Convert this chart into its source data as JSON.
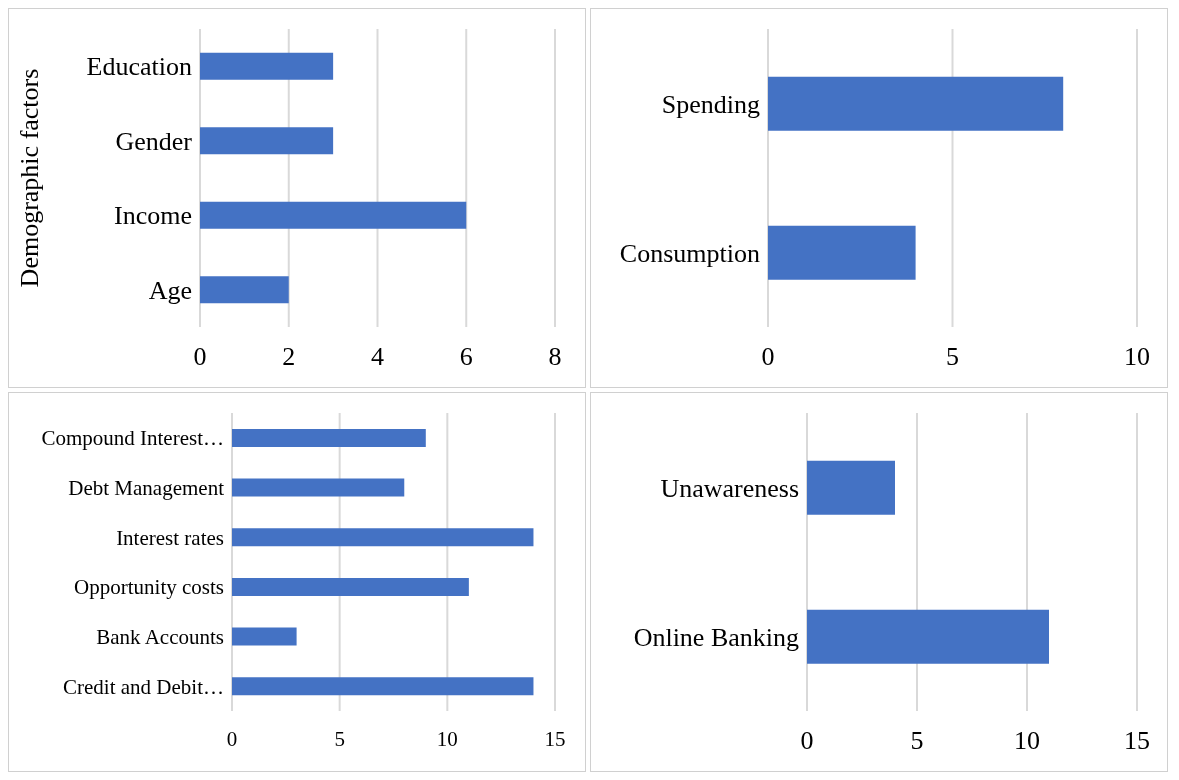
{
  "chart_data": [
    {
      "type": "bar",
      "orientation": "horizontal",
      "ylabel": "Demographic factors",
      "categories": [
        "Education",
        "Gender",
        "Income",
        "Age"
      ],
      "values": [
        3,
        3,
        6,
        2
      ],
      "color": "#4472c4",
      "xlim": [
        0,
        8
      ],
      "xticks": [
        0,
        2,
        4,
        6,
        8
      ],
      "grid": "x"
    },
    {
      "type": "bar",
      "orientation": "horizontal",
      "categories": [
        "Spending",
        "Consumption"
      ],
      "values": [
        8,
        4
      ],
      "color": "#4472c4",
      "xlim": [
        0,
        10
      ],
      "xticks": [
        0,
        5,
        10
      ],
      "grid": "x"
    },
    {
      "type": "bar",
      "orientation": "horizontal",
      "categories": [
        "Compound Interest…",
        "Debt Management",
        "Interest rates",
        "Opportunity costs",
        "Bank Accounts",
        "Credit and Debit…"
      ],
      "values": [
        9,
        8,
        14,
        11,
        3,
        14
      ],
      "color": "#4472c4",
      "xlim": [
        0,
        15
      ],
      "xticks": [
        0,
        5,
        10,
        15
      ],
      "grid": "x"
    },
    {
      "type": "bar",
      "orientation": "horizontal",
      "categories": [
        "Unawareness",
        "Online Banking"
      ],
      "values": [
        4,
        11
      ],
      "color": "#4472c4",
      "xlim": [
        0,
        15
      ],
      "xticks": [
        0,
        5,
        10,
        15
      ],
      "grid": "x"
    }
  ]
}
